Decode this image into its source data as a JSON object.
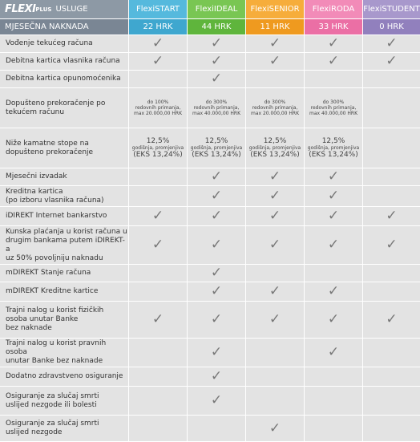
{
  "header": {
    "logo": "FLEXI",
    "logo_sub": "PLUS",
    "title": "USLUGE",
    "fee_label": "MJESEČNA NAKNADA",
    "label_color": "#8d99a5",
    "fee_label_color": "#7a8694",
    "plans": [
      {
        "name": "FlexiSTART",
        "fee": "22 HRK",
        "color": "#55b9dd",
        "fee_color": "#3fa7cf"
      },
      {
        "name": "FlexiIDEAL",
        "fee": "44 HRK",
        "color": "#79c653",
        "fee_color": "#5fb53c"
      },
      {
        "name": "FlexiSENIOR",
        "fee": "11 HRK",
        "color": "#f6ad3b",
        "fee_color": "#ef9a1f"
      },
      {
        "name": "FlexiRODA",
        "fee": "33 HRK",
        "color": "#f28bb8",
        "fee_color": "#eb6fa5"
      },
      {
        "name": "FlexiSTUDENT",
        "fee": "0 HRK",
        "color": "#a898cc",
        "fee_color": "#9180bd"
      }
    ]
  },
  "table": {
    "rows": [
      {
        "label": [
          "Vođenje tekućeg računa"
        ],
        "cells": [
          "✓",
          "✓",
          "✓",
          "✓",
          "✓"
        ]
      },
      {
        "label": [
          "Debitna kartica vlasnika računa"
        ],
        "cells": [
          "✓",
          "✓",
          "✓",
          "✓",
          "✓"
        ]
      },
      {
        "label": [
          "Debitna kartica opunomoćenika"
        ],
        "cells": [
          null,
          "✓",
          null,
          null,
          null
        ]
      },
      {
        "label": [
          "Dopušteno prekoračenje po",
          "tekućem računu"
        ],
        "cells": [
          [
            "do 100%",
            "redovnih primanja,",
            "max 20.000,00 HRK"
          ],
          [
            "do 300%",
            "redovnih primanja,",
            "max 40.000,00 HRK"
          ],
          [
            "do 300%",
            "redovnih primanja,",
            "max 20.000,00 HRK"
          ],
          [
            "do 300%",
            "redovnih primanja,",
            "max 40.000,00 HRK"
          ],
          null
        ]
      },
      {
        "label": [
          "Niže kamatne stope na",
          "dopušteno prekoračenje"
        ],
        "cells": [
          [
            "12,5%",
            "godišnja, promjenjiva",
            "(EKS 13,24%)"
          ],
          [
            "12,5%",
            "godišnja, promjenjiva",
            "(EKS 13,24%)"
          ],
          [
            "12,5%",
            "godišnja, promjenjiva",
            "(EKS 13,24%)"
          ],
          [
            "12,5%",
            "godišnja, promjenjiva",
            "(EKS 13,24%)"
          ],
          null
        ]
      },
      {
        "label": [
          "Mjesečni izvadak"
        ],
        "cells": [
          null,
          "✓",
          "✓",
          "✓",
          null
        ]
      },
      {
        "label": [
          "Kreditna kartica",
          "(po izboru vlasnika računa)"
        ],
        "cells": [
          null,
          "✓",
          "✓",
          "✓",
          null
        ]
      },
      {
        "label": [
          "iDIREKT Internet bankarstvo"
        ],
        "cells": [
          "✓",
          "✓",
          "✓",
          "✓",
          "✓"
        ]
      },
      {
        "label": [
          "Kunska plaćanja u korist računa u",
          "drugim bankama putem iDIREKT-a",
          "uz 50% povoljniju naknadu"
        ],
        "cells": [
          "✓",
          "✓",
          "✓",
          "✓",
          "✓"
        ]
      },
      {
        "label": [
          "mDIREKT Stanje računa"
        ],
        "cells": [
          null,
          "✓",
          null,
          null,
          null
        ]
      },
      {
        "label": [
          "mDIREKT Kreditne kartice"
        ],
        "cells": [
          null,
          "✓",
          "✓",
          "✓",
          null
        ]
      },
      {
        "label": [
          "Trajni nalog u korist fizičkih",
          "osoba unutar Banke",
          "bez naknade"
        ],
        "cells": [
          "✓",
          "✓",
          "✓",
          "✓",
          "✓"
        ]
      },
      {
        "label": [
          "Trajni nalog u korist pravnih osoba",
          "unutar Banke bez naknade"
        ],
        "cells": [
          null,
          "✓",
          null,
          "✓",
          null
        ]
      },
      {
        "label": [
          "Dodatno zdravstveno osiguranje"
        ],
        "cells": [
          null,
          "✓",
          null,
          null,
          null
        ]
      },
      {
        "label": [
          "Osiguranje za slučaj smrti",
          "uslijed nezgode ili bolesti"
        ],
        "cells": [
          null,
          "✓",
          null,
          null,
          null
        ]
      },
      {
        "label": [
          "Osiguranje za slučaj smrti",
          "uslijed nezgode"
        ],
        "cells": [
          null,
          null,
          "✓",
          null,
          null
        ]
      }
    ]
  }
}
